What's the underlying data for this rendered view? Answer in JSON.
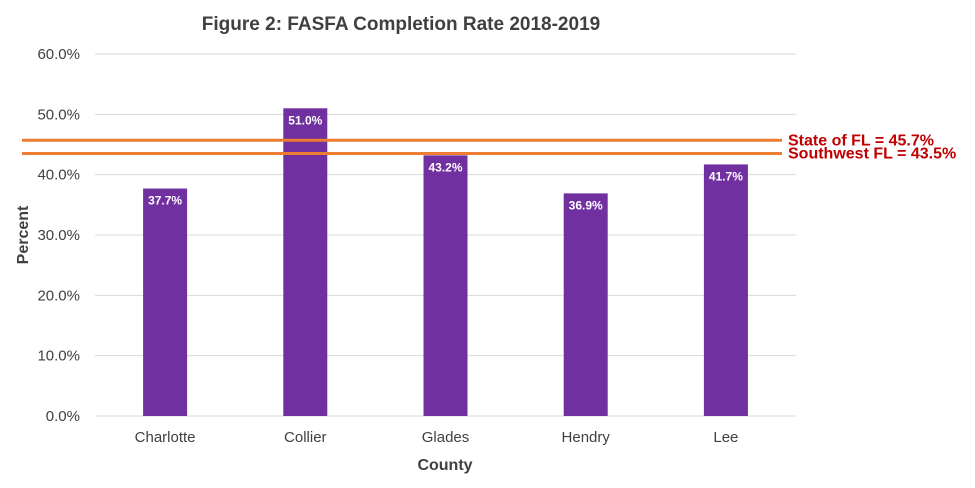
{
  "chart_data": {
    "type": "bar",
    "title": "Figure 2:  FASFA Completion Rate 2018-2019",
    "xlabel": "County",
    "ylabel": "Percent",
    "categories": [
      "Charlotte",
      "Collier",
      "Glades",
      "Hendry",
      "Lee"
    ],
    "values": [
      37.7,
      51.0,
      43.2,
      36.9,
      41.7
    ],
    "value_labels": [
      "37.7%",
      "51.0%",
      "43.2%",
      "36.9%",
      "41.7%"
    ],
    "ylim": [
      0,
      60
    ],
    "yticks": [
      0,
      10,
      20,
      30,
      40,
      50,
      60
    ],
    "ytick_labels": [
      "0.0%",
      "10.0%",
      "20.0%",
      "30.0%",
      "40.0%",
      "50.0%",
      "60.0%"
    ],
    "grid": true,
    "bar_color": "#7030a0",
    "reference_lines": [
      {
        "label": "State of FL = 45.7%",
        "value": 45.7,
        "color": "#ed7d31"
      },
      {
        "label": "Southwest FL = 43.5%",
        "value": 43.5,
        "color": "#ed7d31"
      }
    ],
    "reference_label_color": "#c00000"
  }
}
